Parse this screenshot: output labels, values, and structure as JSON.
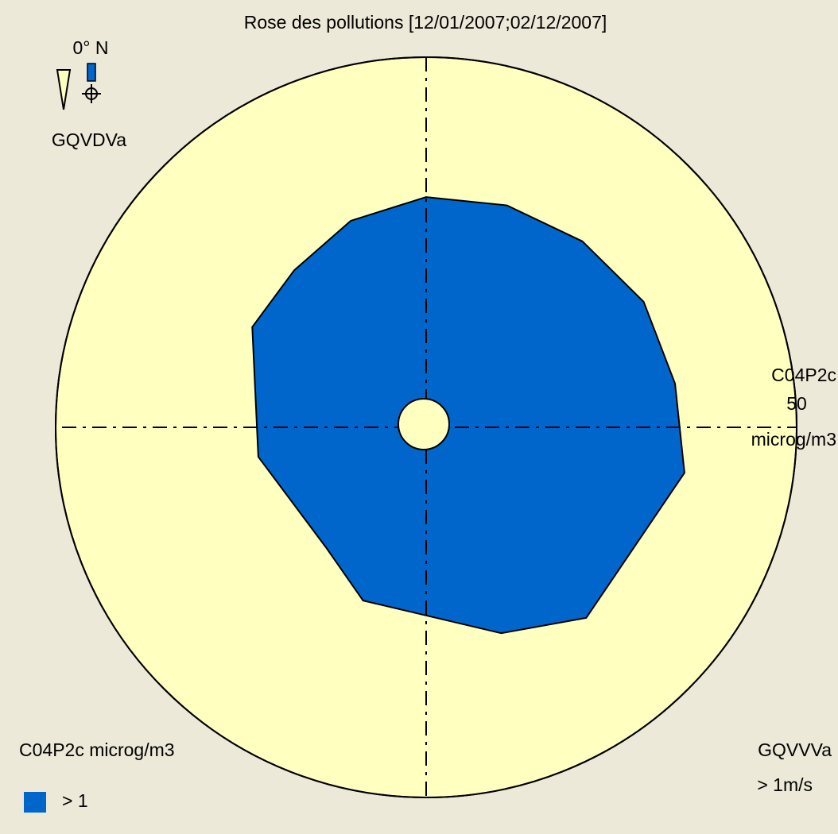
{
  "chart_data": {
    "type": "polar",
    "title": "Rose des pollutions [12/01/2007;02/12/2007]",
    "north_label": "0° N",
    "direction_label": "GQVDVa",
    "radial_label": "C04P2c",
    "radial_unit": "microg/m3",
    "legend_title": "C04P2c microg/m3",
    "speed_label": "GQVVVa",
    "speed_filter": "> 1m/s",
    "x": [
      0,
      20,
      40,
      60,
      80,
      100,
      140,
      160,
      200,
      220,
      260,
      300,
      320,
      340
    ],
    "series": [
      {
        "name": "> 1",
        "color": "#0066cc",
        "values": [
          31.1,
          31.9,
          32.8,
          33.9,
          34.1,
          35.4,
          33.6,
          29.6,
          24.9,
          21.1,
          23.0,
          27.1,
          27.7,
          29.7
        ]
      }
    ],
    "rlim": [
      0,
      50
    ],
    "rticks": [
      50
    ]
  }
}
